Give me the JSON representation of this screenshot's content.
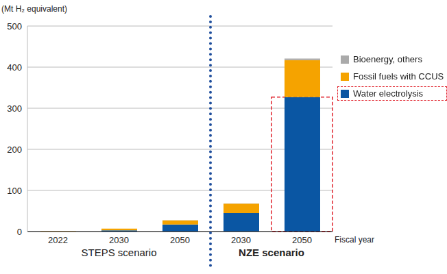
{
  "chart_data": {
    "type": "bar",
    "stacked": true,
    "y_label": "(Mt H₂ equivalent)",
    "x_label": "Fiscal year",
    "categories": [
      "2022",
      "2030",
      "2050",
      "2030",
      "2050"
    ],
    "scenarios": [
      {
        "name": "STEPS scenario",
        "count": 3
      },
      {
        "name": "NZE scenario",
        "count": 2
      }
    ],
    "series": [
      {
        "name": "Water electrolysis",
        "color": "#0a56a3",
        "values": [
          0.1,
          3,
          17,
          45,
          327
        ]
      },
      {
        "name": "Fossil fuels with CCUS",
        "color": "#f5a300",
        "values": [
          0.6,
          4,
          10,
          23,
          90
        ]
      },
      {
        "name": "Bioenergy, others",
        "color": "#aaaaaa",
        "values": [
          0,
          0,
          0.5,
          0.5,
          4
        ]
      }
    ],
    "ylim": [
      0,
      500
    ],
    "yticks": [
      0,
      100,
      200,
      300,
      400,
      500
    ],
    "grid": true,
    "legend": "right"
  }
}
